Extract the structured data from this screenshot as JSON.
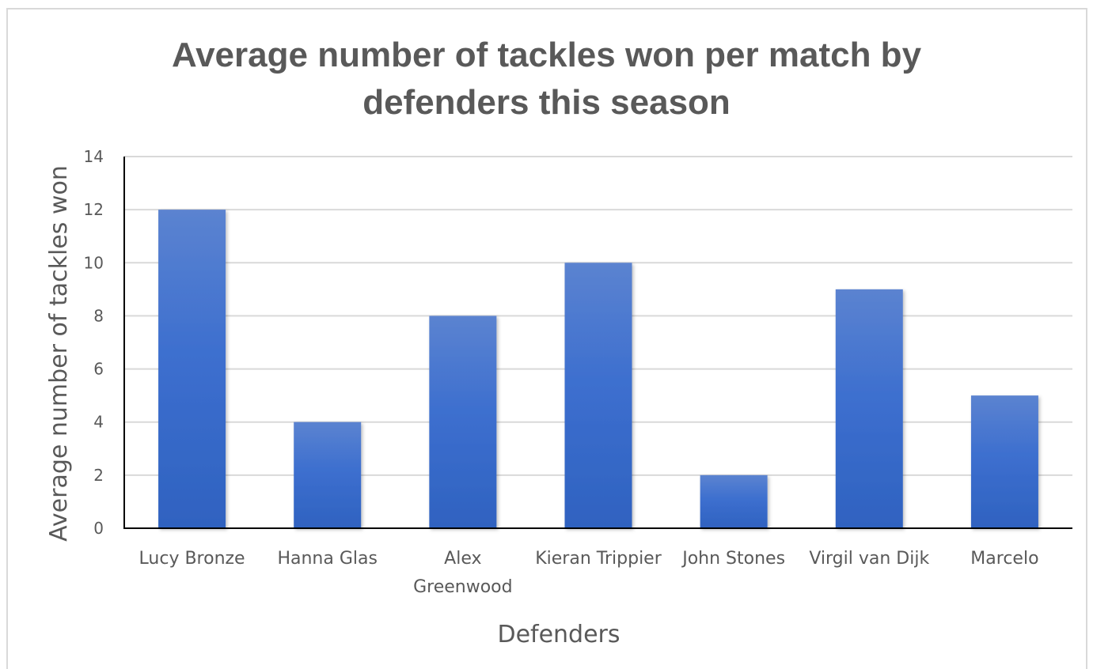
{
  "chart_data": {
    "type": "bar",
    "title_lines": [
      "Average number of tackles won per match by",
      "defenders this season"
    ],
    "xlabel": "Defenders",
    "ylabel": "Average number of tackles won",
    "ylim": [
      0,
      14
    ],
    "yticks": [
      0,
      2,
      4,
      6,
      8,
      10,
      12,
      14
    ],
    "categories": [
      [
        "Lucy Bronze"
      ],
      [
        "Hanna Glas"
      ],
      [
        "Alex",
        "Greenwood"
      ],
      [
        "Kieran Trippier"
      ],
      [
        "John Stones"
      ],
      [
        "Virgil van Dijk"
      ],
      [
        "Marcelo"
      ]
    ],
    "values": [
      12,
      4,
      8,
      10,
      2,
      9,
      5
    ],
    "bar_color_top": "#5b83d0",
    "bar_color_bottom": "#2f62c0",
    "grid": true,
    "legend": "none"
  }
}
